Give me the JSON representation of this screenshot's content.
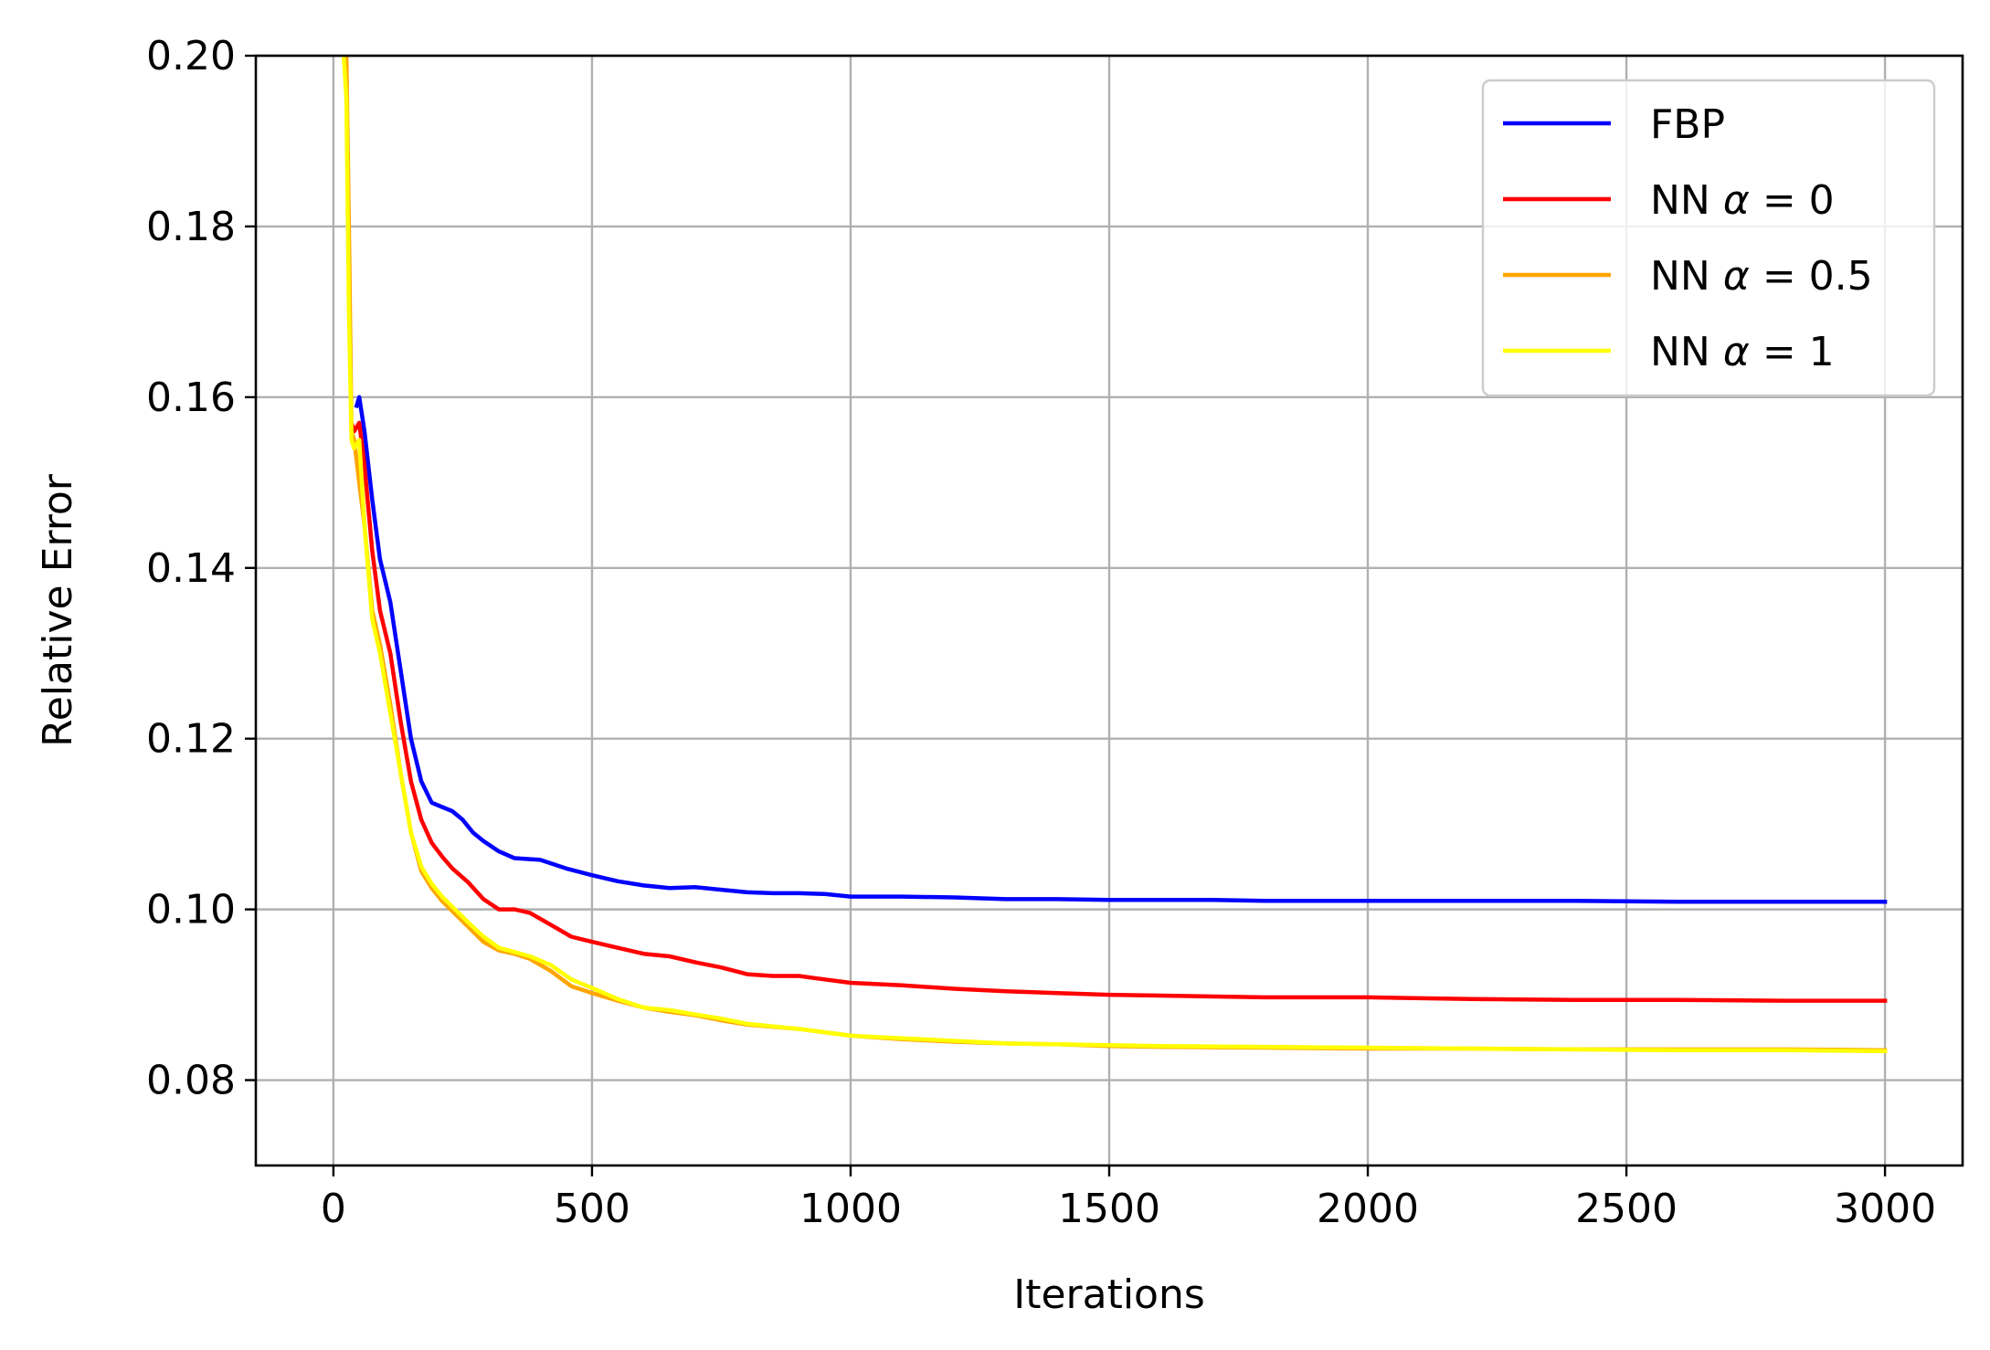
{
  "chart_data": {
    "type": "line",
    "title": "",
    "xlabel": "Iterations",
    "ylabel": "Relative Error",
    "xlim": [
      -150,
      3150
    ],
    "ylim": [
      0.07,
      0.2
    ],
    "grid": true,
    "legend_position": "top-right",
    "x_ticks": [
      0,
      500,
      1000,
      1500,
      2000,
      2500,
      3000
    ],
    "x_tick_labels": [
      "0",
      "500",
      "1000",
      "1500",
      "2000",
      "2500",
      "3000"
    ],
    "y_ticks": [
      0.08,
      0.1,
      0.12,
      0.14,
      0.16,
      0.18,
      0.2
    ],
    "y_tick_labels": [
      "0.08",
      "0.10",
      "0.12",
      "0.14",
      "0.16",
      "0.18",
      "0.20"
    ],
    "series": [
      {
        "name": "FBP",
        "color": "#0000ff",
        "x": [
          45,
          50,
          60,
          75,
          90,
          110,
          130,
          150,
          170,
          190,
          210,
          230,
          250,
          270,
          290,
          320,
          350,
          400,
          450,
          500,
          550,
          600,
          650,
          700,
          750,
          800,
          850,
          900,
          950,
          1000,
          1100,
          1200,
          1300,
          1400,
          1500,
          1600,
          1700,
          1800,
          1900,
          2000,
          2200,
          2400,
          2600,
          2800,
          3000
        ],
        "y": [
          0.159,
          0.16,
          0.156,
          0.148,
          0.141,
          0.136,
          0.128,
          0.12,
          0.115,
          0.1125,
          0.112,
          0.1115,
          0.1105,
          0.109,
          0.108,
          0.1068,
          0.106,
          0.1058,
          0.1048,
          0.104,
          0.1033,
          0.1028,
          0.1025,
          0.1026,
          0.1023,
          0.102,
          0.1019,
          0.1019,
          0.1018,
          0.1015,
          0.1015,
          0.1014,
          0.1012,
          0.1012,
          0.1011,
          0.1011,
          0.1011,
          0.101,
          0.101,
          0.101,
          0.101,
          0.101,
          0.1009,
          0.1009,
          0.1009
        ]
      },
      {
        "name": "NN α = 0",
        "color": "#ff0000",
        "x": [
          35,
          40,
          50,
          60,
          75,
          90,
          110,
          130,
          150,
          170,
          190,
          210,
          230,
          260,
          290,
          320,
          350,
          380,
          420,
          460,
          500,
          550,
          600,
          650,
          700,
          750,
          800,
          850,
          900,
          950,
          1000,
          1100,
          1200,
          1300,
          1400,
          1500,
          1600,
          1800,
          2000,
          2200,
          2400,
          2600,
          2800,
          3000
        ],
        "y": [
          0.157,
          0.156,
          0.157,
          0.152,
          0.142,
          0.135,
          0.13,
          0.122,
          0.115,
          0.1105,
          0.1078,
          0.1062,
          0.1048,
          0.1032,
          0.1012,
          0.1,
          0.1,
          0.0996,
          0.0982,
          0.0968,
          0.0962,
          0.0955,
          0.0948,
          0.0945,
          0.0938,
          0.0932,
          0.0924,
          0.0922,
          0.0922,
          0.0918,
          0.0914,
          0.0911,
          0.0907,
          0.0904,
          0.0902,
          0.09,
          0.0899,
          0.0897,
          0.0897,
          0.0895,
          0.0894,
          0.0894,
          0.0893,
          0.0893
        ]
      },
      {
        "name": "NN α = 0.5",
        "color": "#ffa500",
        "x": [
          25,
          30,
          35,
          40,
          50,
          60,
          75,
          90,
          110,
          130,
          150,
          170,
          190,
          210,
          230,
          260,
          290,
          320,
          350,
          380,
          420,
          460,
          500,
          550,
          600,
          650,
          700,
          750,
          800,
          900,
          1000,
          1100,
          1200,
          1300,
          1400,
          1500,
          1600,
          1800,
          2000,
          2200,
          2400,
          2600,
          2800,
          3000
        ],
        "y": [
          0.2,
          0.18,
          0.156,
          0.155,
          0.15,
          0.145,
          0.135,
          0.131,
          0.124,
          0.116,
          0.109,
          0.1045,
          0.1025,
          0.101,
          0.0998,
          0.098,
          0.0962,
          0.0952,
          0.0948,
          0.0942,
          0.0928,
          0.091,
          0.0902,
          0.0893,
          0.0885,
          0.088,
          0.0876,
          0.087,
          0.0865,
          0.086,
          0.0852,
          0.0848,
          0.0845,
          0.0843,
          0.0842,
          0.084,
          0.0839,
          0.0838,
          0.0837,
          0.0837,
          0.0836,
          0.0836,
          0.0836,
          0.0835
        ]
      },
      {
        "name": "NN α = 1",
        "color": "#ffff00",
        "x": [
          20,
          25,
          30,
          35,
          40,
          50,
          60,
          75,
          90,
          110,
          130,
          150,
          170,
          190,
          210,
          230,
          260,
          290,
          320,
          350,
          380,
          420,
          460,
          500,
          550,
          600,
          650,
          700,
          750,
          800,
          900,
          1000,
          1100,
          1200,
          1300,
          1400,
          1500,
          1600,
          1800,
          2000,
          2200,
          2400,
          2600,
          2800,
          3000
        ],
        "y": [
          0.2,
          0.195,
          0.17,
          0.155,
          0.154,
          0.155,
          0.145,
          0.134,
          0.13,
          0.123,
          0.116,
          0.109,
          0.105,
          0.103,
          0.1015,
          0.1003,
          0.0985,
          0.0968,
          0.0955,
          0.095,
          0.0945,
          0.0935,
          0.0918,
          0.0908,
          0.0895,
          0.0885,
          0.0882,
          0.0877,
          0.0872,
          0.0866,
          0.086,
          0.0852,
          0.0849,
          0.0846,
          0.0843,
          0.0842,
          0.0841,
          0.084,
          0.0839,
          0.0838,
          0.0837,
          0.0836,
          0.0835,
          0.0835,
          0.0834
        ]
      }
    ],
    "legend": [
      {
        "prefix": "FBP",
        "alpha": "",
        "value": ""
      },
      {
        "prefix": "NN ",
        "alpha": "α",
        "value": " = 0"
      },
      {
        "prefix": "NN ",
        "alpha": "α",
        "value": " = 0.5"
      },
      {
        "prefix": "NN ",
        "alpha": "α",
        "value": " = 1"
      }
    ]
  }
}
